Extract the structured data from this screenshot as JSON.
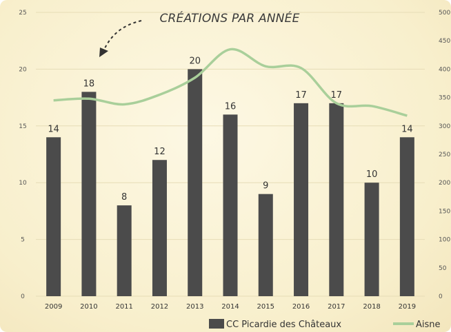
{
  "chart_data": {
    "type": "bar",
    "title": "CRÉATIONS PAR ANNÉE",
    "categories": [
      "2009",
      "2010",
      "2011",
      "2012",
      "2013",
      "2014",
      "2015",
      "2016",
      "2017",
      "2018",
      "2019"
    ],
    "series": [
      {
        "name": "CC Picardie des Châteaux",
        "type": "bar",
        "axis": "left",
        "color": "#4b4b4b",
        "values": [
          14,
          18,
          8,
          12,
          20,
          16,
          9,
          17,
          17,
          10,
          14
        ]
      },
      {
        "name": "Aisne",
        "type": "line",
        "axis": "right",
        "color": "#a9cf9a",
        "values": [
          345,
          348,
          338,
          355,
          385,
          435,
          405,
          402,
          340,
          335,
          318
        ]
      }
    ],
    "ylim": [
      0,
      25
    ],
    "yticks": [
      0,
      5,
      10,
      15,
      20,
      25
    ],
    "y2lim": [
      0,
      500
    ],
    "y2ticks": [
      0,
      50,
      100,
      150,
      200,
      250,
      300,
      350,
      400,
      450,
      500
    ],
    "grid": true,
    "legend": "bottom-right",
    "data_labels": true
  }
}
